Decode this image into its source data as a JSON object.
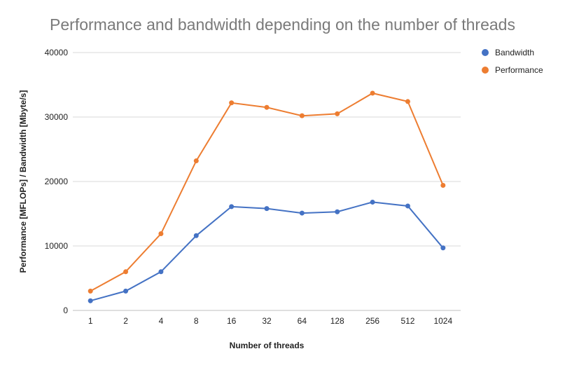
{
  "chart_data": {
    "type": "line",
    "title": "Performance and bandwidth depending on the number of threads",
    "xlabel": "Number of threads",
    "ylabel": "Performance [MFLOPs] / Bandwidth [Mbyte/s]",
    "categories": [
      "1",
      "2",
      "4",
      "8",
      "16",
      "32",
      "64",
      "128",
      "256",
      "512",
      "1024"
    ],
    "ylim": [
      0,
      40000
    ],
    "yticks": [
      "0",
      "10000",
      "20000",
      "30000",
      "40000"
    ],
    "grid": true,
    "legend_position": "top-right",
    "series": [
      {
        "name": "Bandwidth",
        "color": "#4472c4",
        "values": [
          1500,
          3000,
          6000,
          11600,
          16100,
          15800,
          15100,
          15300,
          16800,
          16200,
          9700
        ]
      },
      {
        "name": "Performance",
        "color": "#ed7d31",
        "values": [
          3000,
          6000,
          11900,
          23200,
          32200,
          31500,
          30200,
          30500,
          33700,
          32400,
          19400
        ]
      }
    ]
  }
}
